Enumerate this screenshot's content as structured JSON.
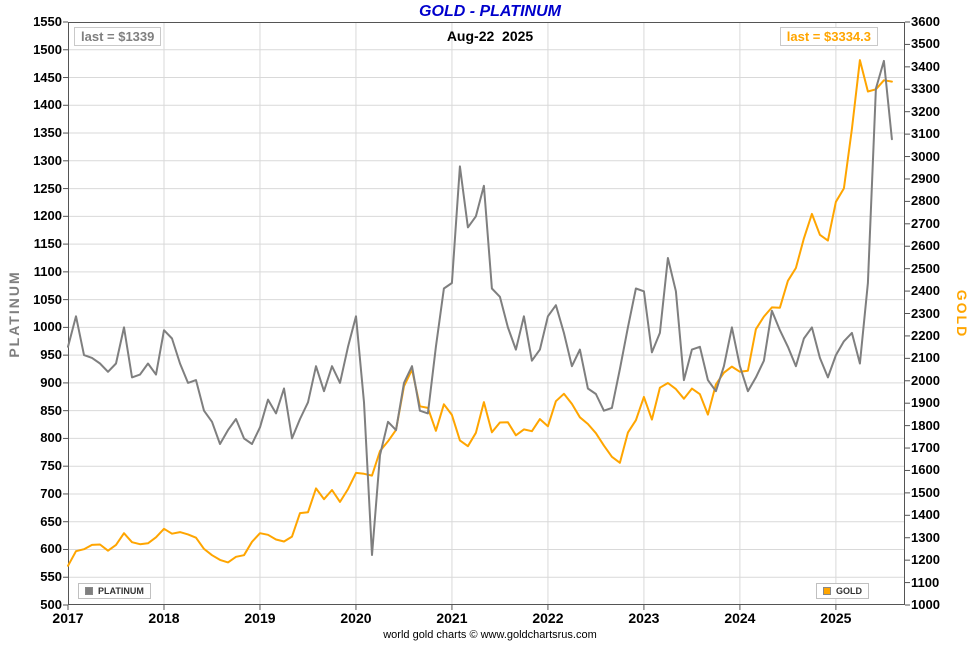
{
  "header": {
    "date_label": "Aug-22  2025"
  },
  "colors": {
    "title": "#0000CC",
    "grid": "#d9d9d9",
    "border": "#555555"
  },
  "footer": {
    "credit": "world gold charts © www.goldchartsrus.com"
  },
  "chart_data": {
    "type": "line",
    "title": "GOLD - PLATINUM",
    "x_axis": {
      "min": 2017.0,
      "max": 2025.72,
      "tick_years": [
        2017,
        2018,
        2019,
        2020,
        2021,
        2022,
        2023,
        2024,
        2025
      ]
    },
    "left_axis": {
      "label": "PLATINUM",
      "min": 500,
      "max": 1550,
      "tick_step": 50
    },
    "right_axis": {
      "label": "GOLD",
      "min": 1000,
      "max": 3600,
      "tick_step": 100
    },
    "x_start": 2017.0,
    "x_step_years": 0.0833333,
    "grid": true,
    "legend_position": "bottom-inside",
    "series": [
      {
        "name": "PLATINUM",
        "axis": "left",
        "color": "#7f7f7f",
        "last_label": "last = $1339",
        "last_value": 1339,
        "values": [
          965,
          1020,
          950,
          945,
          935,
          920,
          935,
          1000,
          910,
          915,
          935,
          915,
          995,
          980,
          935,
          900,
          905,
          850,
          830,
          790,
          815,
          835,
          800,
          790,
          820,
          870,
          845,
          890,
          800,
          835,
          865,
          930,
          885,
          930,
          900,
          965,
          1020,
          865,
          590,
          770,
          830,
          815,
          900,
          930,
          850,
          845,
          965,
          1070,
          1080,
          1290,
          1180,
          1200,
          1255,
          1070,
          1055,
          1000,
          960,
          1020,
          940,
          960,
          1020,
          1040,
          990,
          930,
          960,
          890,
          880,
          850,
          855,
          925,
          1000,
          1070,
          1065,
          955,
          990,
          1125,
          1065,
          905,
          960,
          965,
          905,
          885,
          930,
          1000,
          930,
          885,
          910,
          940,
          1030,
          995,
          965,
          930,
          980,
          1000,
          945,
          910,
          950,
          975,
          990,
          935,
          1080,
          1430,
          1480,
          1339
        ]
      },
      {
        "name": "GOLD",
        "axis": "right",
        "color": "#FFA500",
        "last_label": "last = $3334.3",
        "last_value": 3334.3,
        "values": [
          1175,
          1240,
          1249,
          1268,
          1270,
          1242,
          1268,
          1320,
          1280,
          1271,
          1275,
          1302,
          1340,
          1318,
          1325,
          1315,
          1300,
          1250,
          1222,
          1201,
          1190,
          1215,
          1222,
          1282,
          1320,
          1313,
          1292,
          1283,
          1305,
          1410,
          1414,
          1520,
          1472,
          1513,
          1460,
          1517,
          1589,
          1585,
          1577,
          1687,
          1730,
          1781,
          1976,
          2050,
          1886,
          1879,
          1777,
          1895,
          1848,
          1734,
          1708,
          1768,
          1905,
          1770,
          1814,
          1815,
          1757,
          1783,
          1775,
          1829,
          1797,
          1909,
          1942,
          1897,
          1837,
          1807,
          1766,
          1711,
          1661,
          1634,
          1769,
          1824,
          1928,
          1827,
          1969,
          1990,
          1963,
          1920,
          1965,
          1940,
          1849,
          1984,
          2036,
          2063,
          2040,
          2045,
          2230,
          2286,
          2327,
          2326,
          2446,
          2503,
          2635,
          2744,
          2651,
          2625,
          2798,
          2858,
          3123,
          3430,
          3290,
          3300,
          3340,
          3334.3
        ]
      }
    ]
  }
}
